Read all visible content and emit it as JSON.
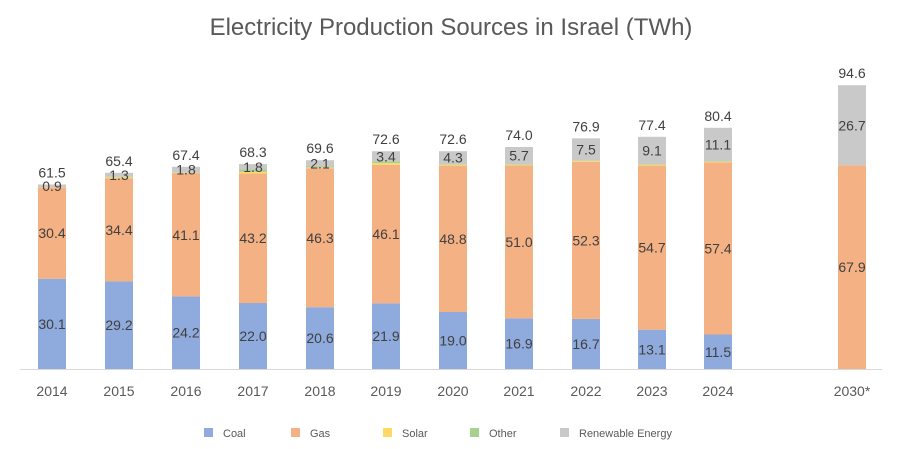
{
  "chart_data": {
    "type": "bar",
    "stacked": true,
    "title": "Electricity Production Sources in Israel (TWh)",
    "xlabel": "",
    "ylabel": "",
    "ylim": [
      0,
      100
    ],
    "grid": false,
    "legend_position": "bottom",
    "categories": [
      "2014",
      "2015",
      "2016",
      "2017",
      "2018",
      "2019",
      "2020",
      "2021",
      "2022",
      "2023",
      "2024",
      "2030*"
    ],
    "series": [
      {
        "name": "Coal",
        "color": "#8faadc",
        "values": [
          30.1,
          29.2,
          24.2,
          22.0,
          20.6,
          21.9,
          19.0,
          16.9,
          16.7,
          13.1,
          11.5,
          0
        ],
        "labels": [
          "30.1",
          "29.2",
          "24.2",
          "22.0",
          "20.6",
          "21.9",
          "19.0",
          "16.9",
          "16.7",
          "13.1",
          "11.5",
          ""
        ]
      },
      {
        "name": "Gas",
        "color": "#f4b183",
        "values": [
          30.4,
          34.4,
          41.1,
          43.2,
          46.3,
          46.1,
          48.8,
          51.0,
          52.3,
          54.7,
          57.4,
          67.9
        ],
        "labels": [
          "30.4",
          "34.4",
          "41.1",
          "43.2",
          "46.3",
          "46.1",
          "48.8",
          "51.0",
          "52.3",
          "54.7",
          "57.4",
          "67.9"
        ]
      },
      {
        "name": "Solar",
        "color": "#ffd966",
        "values": [
          0.1,
          0.3,
          0.1,
          0.5,
          0.3,
          0.6,
          0.3,
          0.2,
          0.3,
          0.3,
          0.2,
          0
        ],
        "labels": []
      },
      {
        "name": "Other",
        "color": "#a9d18e",
        "values": [
          0,
          0.2,
          0.2,
          0.8,
          0.3,
          0.6,
          0.2,
          0.2,
          0.1,
          0.2,
          0.2,
          0
        ],
        "labels": []
      },
      {
        "name": "Renewable Energy",
        "color": "#c9c9c9",
        "values": [
          0.9,
          1.3,
          1.8,
          1.8,
          2.1,
          3.4,
          4.3,
          5.7,
          7.5,
          9.1,
          11.1,
          26.7
        ],
        "labels": [
          "0.9",
          "1.3",
          "1.8",
          "1.8",
          "2.1",
          "3.4",
          "4.3",
          "5.7",
          "7.5",
          "9.1",
          "11.1",
          "26.7"
        ]
      }
    ],
    "totals": [
      "61.5",
      "65.4",
      "67.4",
      "68.3",
      "69.6",
      "72.6",
      "72.6",
      "74.0",
      "76.9",
      "77.4",
      "80.4",
      "94.6"
    ]
  }
}
